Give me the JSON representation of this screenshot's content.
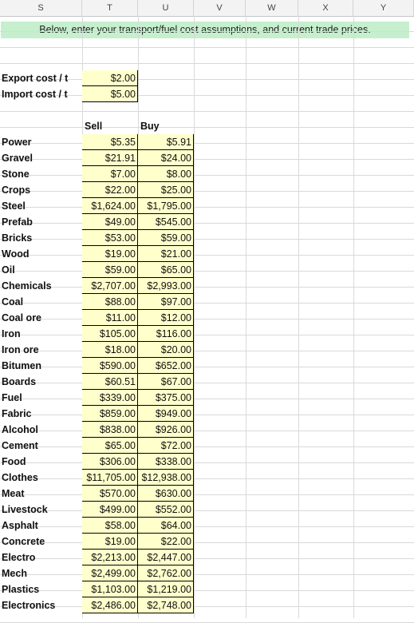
{
  "columns": [
    "S",
    "T",
    "U",
    "V",
    "W",
    "X",
    "Y"
  ],
  "banner": "Below, enter your transport/fuel cost assumptions, and current trade prices.",
  "costs": [
    {
      "label": "Export cost / t",
      "value": "$2.00"
    },
    {
      "label": "Import cost / t",
      "value": "$5.00"
    }
  ],
  "table_headers": {
    "sell": "Sell",
    "buy": "Buy"
  },
  "goods": [
    {
      "name": "Power",
      "sell": "$5.35",
      "buy": "$5.91"
    },
    {
      "name": "Gravel",
      "sell": "$21.91",
      "buy": "$24.00"
    },
    {
      "name": "Stone",
      "sell": "$7.00",
      "buy": "$8.00"
    },
    {
      "name": "Crops",
      "sell": "$22.00",
      "buy": "$25.00"
    },
    {
      "name": "Steel",
      "sell": "$1,624.00",
      "buy": "$1,795.00"
    },
    {
      "name": "Prefab",
      "sell": "$49.00",
      "buy": "$545.00"
    },
    {
      "name": "Bricks",
      "sell": "$53.00",
      "buy": "$59.00"
    },
    {
      "name": "Wood",
      "sell": "$19.00",
      "buy": "$21.00"
    },
    {
      "name": "Oil",
      "sell": "$59.00",
      "buy": "$65.00"
    },
    {
      "name": "Chemicals",
      "sell": "$2,707.00",
      "buy": "$2,993.00"
    },
    {
      "name": "Coal",
      "sell": "$88.00",
      "buy": "$97.00"
    },
    {
      "name": "Coal ore",
      "sell": "$11.00",
      "buy": "$12.00"
    },
    {
      "name": "Iron",
      "sell": "$105.00",
      "buy": "$116.00"
    },
    {
      "name": "Iron ore",
      "sell": "$18.00",
      "buy": "$20.00"
    },
    {
      "name": "Bitumen",
      "sell": "$590.00",
      "buy": "$652.00"
    },
    {
      "name": "Boards",
      "sell": "$60.51",
      "buy": "$67.00"
    },
    {
      "name": "Fuel",
      "sell": "$339.00",
      "buy": "$375.00"
    },
    {
      "name": "Fabric",
      "sell": "$859.00",
      "buy": "$949.00"
    },
    {
      "name": "Alcohol",
      "sell": "$838.00",
      "buy": "$926.00"
    },
    {
      "name": "Cement",
      "sell": "$65.00",
      "buy": "$72.00"
    },
    {
      "name": "Food",
      "sell": "$306.00",
      "buy": "$338.00"
    },
    {
      "name": "Clothes",
      "sell": "$11,705.00",
      "buy": "$12,938.00"
    },
    {
      "name": "Meat",
      "sell": "$570.00",
      "buy": "$630.00"
    },
    {
      "name": "Livestock",
      "sell": "$499.00",
      "buy": "$552.00"
    },
    {
      "name": "Asphalt",
      "sell": "$58.00",
      "buy": "$64.00"
    },
    {
      "name": "Concrete",
      "sell": "$19.00",
      "buy": "$22.00"
    },
    {
      "name": "Electro",
      "sell": "$2,213.00",
      "buy": "$2,447.00"
    },
    {
      "name": "Mech",
      "sell": "$2,499.00",
      "buy": "$2,762.00"
    },
    {
      "name": "Plastics",
      "sell": "$1,103.00",
      "buy": "$1,219.00"
    },
    {
      "name": "Electronics",
      "sell": "$2,486.00",
      "buy": "$2,748.00"
    }
  ]
}
